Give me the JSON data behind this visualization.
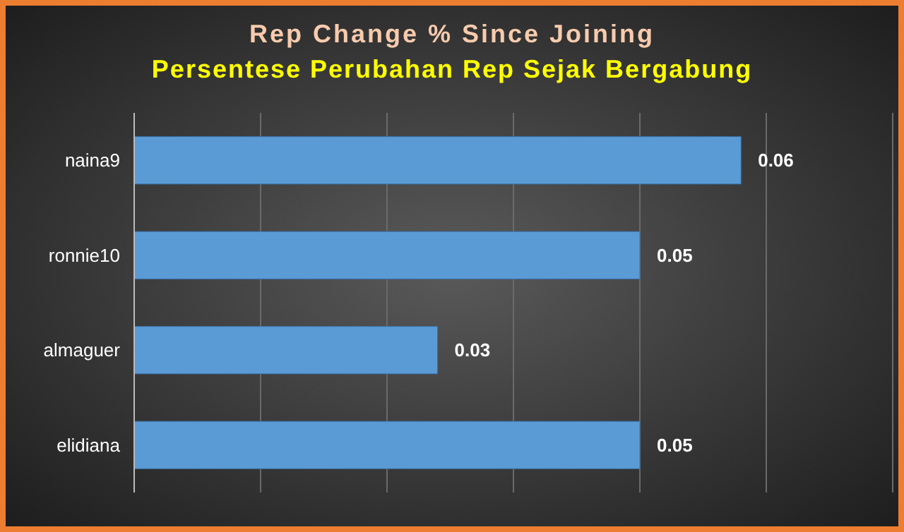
{
  "chart_data": {
    "type": "bar",
    "orientation": "horizontal",
    "title": "Rep Change % Since Joining",
    "subtitle": "Persentese Perubahan Rep Sejak Bergabung",
    "categories": [
      "naina9",
      "ronnie10",
      "almaguer",
      "elidiana"
    ],
    "values": [
      0.06,
      0.05,
      0.03,
      0.05
    ],
    "color": "#5b9bd5",
    "data_labels": true,
    "xlim": [
      0,
      0.075
    ],
    "xticks": [
      {
        "value": 0,
        "label": null
      },
      {
        "value": 0.0125,
        "label": null
      },
      {
        "value": 0.025,
        "label": null
      },
      {
        "value": 0.0375,
        "label": null
      },
      {
        "value": 0.05,
        "label": null
      },
      {
        "value": 0.0625,
        "label": null
      },
      {
        "value": 0.075,
        "label": null
      }
    ],
    "grid": "x",
    "tick_labels": "y"
  }
}
